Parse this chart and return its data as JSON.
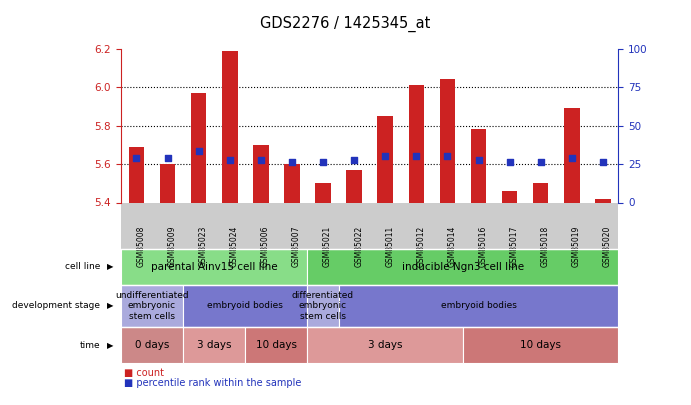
{
  "title": "GDS2276 / 1425345_at",
  "samples": [
    "GSM85008",
    "GSM85009",
    "GSM85023",
    "GSM85024",
    "GSM85006",
    "GSM85007",
    "GSM85021",
    "GSM85022",
    "GSM85011",
    "GSM85012",
    "GSM85014",
    "GSM85016",
    "GSM85017",
    "GSM85018",
    "GSM85019",
    "GSM85020"
  ],
  "bar_values": [
    5.69,
    5.6,
    5.97,
    6.19,
    5.7,
    5.6,
    5.5,
    5.57,
    5.85,
    6.01,
    6.04,
    5.78,
    5.46,
    5.5,
    5.89,
    5.42
  ],
  "dot_values": [
    5.63,
    5.63,
    5.67,
    5.62,
    5.62,
    5.61,
    5.61,
    5.62,
    5.64,
    5.64,
    5.64,
    5.62,
    5.61,
    5.61,
    5.63,
    5.61
  ],
  "ylim_left": [
    5.4,
    6.2
  ],
  "ylim_right": [
    0,
    100
  ],
  "yticks_left": [
    5.4,
    5.6,
    5.8,
    6.0,
    6.2
  ],
  "yticks_right": [
    0,
    25,
    50,
    75,
    100
  ],
  "bar_color": "#cc2222",
  "dot_color": "#2233bb",
  "bar_bottom": 5.4,
  "cell_line_groups": [
    {
      "label": "parental Ainv15 cell line",
      "start": 0,
      "end": 6,
      "color": "#88dd88"
    },
    {
      "label": "inducible Ngn3 cell line",
      "start": 6,
      "end": 16,
      "color": "#66cc66"
    }
  ],
  "dev_stage_groups": [
    {
      "label": "undifferentiated\nembryonic\nstem cells",
      "start": 0,
      "end": 2,
      "color": "#aaaadd"
    },
    {
      "label": "embryoid bodies",
      "start": 2,
      "end": 6,
      "color": "#7777cc"
    },
    {
      "label": "differentiated\nembryonic\nstem cells",
      "start": 6,
      "end": 7,
      "color": "#aaaadd"
    },
    {
      "label": "embryoid bodies",
      "start": 7,
      "end": 16,
      "color": "#7777cc"
    }
  ],
  "time_groups": [
    {
      "label": "0 days",
      "start": 0,
      "end": 2,
      "color": "#cc8888"
    },
    {
      "label": "3 days",
      "start": 2,
      "end": 4,
      "color": "#dd9999"
    },
    {
      "label": "10 days",
      "start": 4,
      "end": 6,
      "color": "#cc7777"
    },
    {
      "label": "3 days",
      "start": 6,
      "end": 11,
      "color": "#dd9999"
    },
    {
      "label": "10 days",
      "start": 11,
      "end": 16,
      "color": "#cc7777"
    }
  ],
  "row_labels": [
    "cell line",
    "development stage",
    "time"
  ],
  "legend_items": [
    {
      "label": "count",
      "color": "#cc2222"
    },
    {
      "label": "percentile rank within the sample",
      "color": "#2233bb"
    }
  ],
  "bg_color": "#ffffff",
  "left_axis_color": "#cc2222",
  "right_axis_color": "#2233bb",
  "xtick_bg_color": "#cccccc",
  "grid_lines": [
    5.6,
    5.8,
    6.0
  ]
}
